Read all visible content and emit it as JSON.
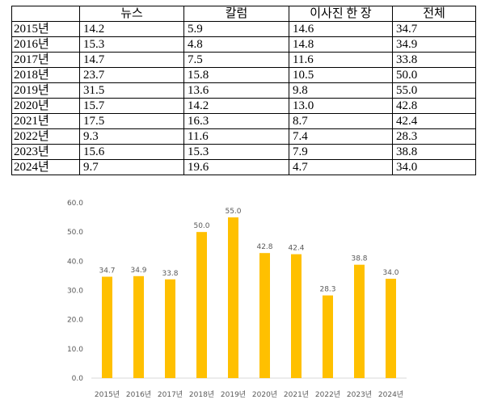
{
  "table": {
    "headers": [
      "",
      "뉴스",
      "칼럼",
      "이사진 한 장",
      "전체"
    ],
    "rows": [
      [
        "2015년",
        "14.2",
        "5.9",
        "14.6",
        "34.7"
      ],
      [
        "2016년",
        "15.3",
        "4.8",
        "14.8",
        "34.9"
      ],
      [
        "2017년",
        "14.7",
        "7.5",
        "11.6",
        "33.8"
      ],
      [
        "2018년",
        "23.7",
        "15.8",
        "10.5",
        "50.0"
      ],
      [
        "2019년",
        "31.5",
        "13.6",
        "9.8",
        "55.0"
      ],
      [
        "2020년",
        "15.7",
        "14.2",
        "13.0",
        "42.8"
      ],
      [
        "2021년",
        "17.5",
        "16.3",
        "8.7",
        "42.4"
      ],
      [
        "2022년",
        "9.3",
        "11.6",
        "7.4",
        "28.3"
      ],
      [
        "2023년",
        "15.6",
        "15.3",
        "7.9",
        "38.8"
      ],
      [
        "2024년",
        "9.7",
        "19.6",
        "4.7",
        "34.0"
      ]
    ]
  },
  "chart_data": {
    "type": "bar",
    "categories": [
      "2015년",
      "2016년",
      "2017년",
      "2018년",
      "2019년",
      "2020년",
      "2021년",
      "2022년",
      "2023년",
      "2024년"
    ],
    "values": [
      34.7,
      34.9,
      33.8,
      50.0,
      55.0,
      42.8,
      42.4,
      28.3,
      38.8,
      34.0
    ],
    "value_labels": [
      "34.7",
      "34.9",
      "33.8",
      "50.0",
      "55.0",
      "42.8",
      "42.4",
      "28.3",
      "38.8",
      "34.0"
    ],
    "yticks": [
      "0.0",
      "10.0",
      "20.0",
      "30.0",
      "40.0",
      "50.0",
      "60.0"
    ],
    "ylim": [
      0,
      60
    ],
    "bar_color": "#FFC000",
    "grid": false,
    "title": "",
    "xlabel": "",
    "ylabel": ""
  }
}
